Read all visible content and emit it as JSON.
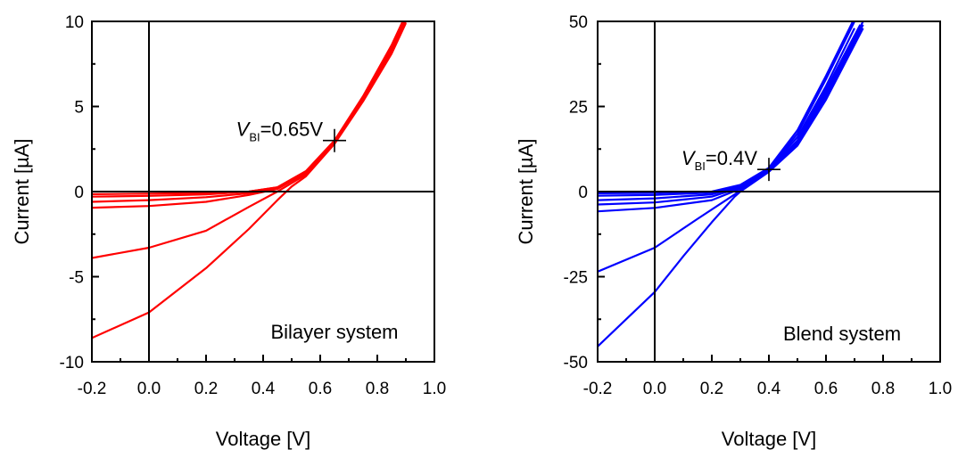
{
  "chart_data": [
    {
      "type": "line",
      "panel": "left",
      "xlabel": "Voltage [V]",
      "ylabel": "Current [µA]",
      "xlim": [
        -0.2,
        1.0
      ],
      "ylim": [
        -10,
        10
      ],
      "xticks": [
        "-0.2",
        "0.0",
        "0.2",
        "0.4",
        "0.6",
        "0.8",
        "1.0"
      ],
      "yticks": [
        "-10",
        "-5",
        "0",
        "5",
        "10"
      ],
      "color": "#ff0000",
      "grid": false,
      "annotation": {
        "prefix": "V",
        "subscript": "BI",
        "suffix": "=0.65V",
        "x": 0.65,
        "y": 3.0
      },
      "label": "Bilayer system",
      "series": [
        {
          "x": [
            -0.2,
            0.0,
            0.2,
            0.35,
            0.45,
            0.55,
            0.65,
            0.75,
            0.85,
            0.9
          ],
          "y": [
            -0.15,
            -0.12,
            -0.08,
            0.0,
            0.25,
            1.2,
            3.0,
            5.6,
            8.6,
            10.4
          ]
        },
        {
          "x": [
            -0.2,
            0.0,
            0.2,
            0.35,
            0.45,
            0.55,
            0.65,
            0.75,
            0.85,
            0.9
          ],
          "y": [
            -0.3,
            -0.25,
            -0.17,
            0.0,
            0.25,
            1.2,
            3.0,
            5.5,
            8.5,
            10.3
          ]
        },
        {
          "x": [
            -0.2,
            0.0,
            0.2,
            0.35,
            0.45,
            0.55,
            0.65,
            0.75,
            0.85,
            0.9
          ],
          "y": [
            -0.6,
            -0.5,
            -0.33,
            -0.1,
            0.2,
            1.15,
            2.95,
            5.45,
            8.4,
            10.2
          ]
        },
        {
          "x": [
            -0.2,
            0.0,
            0.2,
            0.35,
            0.45,
            0.55,
            0.65,
            0.75,
            0.85,
            0.9
          ],
          "y": [
            -0.95,
            -0.85,
            -0.6,
            -0.2,
            0.15,
            1.1,
            2.9,
            5.4,
            8.3,
            10.1
          ]
        },
        {
          "x": [
            -0.2,
            0.0,
            0.2,
            0.35,
            0.45,
            0.5,
            0.55,
            0.65,
            0.75,
            0.85,
            0.9
          ],
          "y": [
            -3.9,
            -3.3,
            -2.3,
            -0.9,
            0.0,
            0.5,
            1.0,
            2.85,
            5.35,
            8.2,
            10.0
          ]
        },
        {
          "x": [
            -0.2,
            0.0,
            0.2,
            0.35,
            0.45,
            0.5,
            0.55,
            0.65,
            0.75,
            0.85,
            0.9
          ],
          "y": [
            -8.6,
            -7.1,
            -4.5,
            -2.2,
            -0.5,
            0.3,
            0.9,
            2.8,
            5.3,
            8.1,
            9.9
          ]
        }
      ]
    },
    {
      "type": "line",
      "panel": "right",
      "xlabel": "Voltage [V]",
      "ylabel": "Current [µA]",
      "xlim": [
        -0.2,
        1.0
      ],
      "ylim": [
        -50,
        50
      ],
      "xticks": [
        "-0.2",
        "0.0",
        "0.2",
        "0.4",
        "0.6",
        "0.8",
        "1.0"
      ],
      "yticks": [
        "-50",
        "-25",
        "0",
        "25",
        "50"
      ],
      "color": "#0000ff",
      "grid": false,
      "annotation": {
        "prefix": "V",
        "subscript": "BI",
        "suffix": "=0.4V",
        "x": 0.4,
        "y": 6.5
      },
      "label": "Blend system",
      "series": [
        {
          "x": [
            -0.2,
            0.0,
            0.2,
            0.3,
            0.4,
            0.5,
            0.6,
            0.7
          ],
          "y": [
            -0.5,
            -0.4,
            0.0,
            2.0,
            7.0,
            18.0,
            34.0,
            51.0
          ]
        },
        {
          "x": [
            -0.2,
            0.0,
            0.2,
            0.3,
            0.4,
            0.5,
            0.6,
            0.7
          ],
          "y": [
            -1.2,
            -1.0,
            -0.3,
            1.8,
            6.8,
            17.0,
            33.0,
            50.0
          ]
        },
        {
          "x": [
            -0.2,
            0.0,
            0.2,
            0.3,
            0.4,
            0.5,
            0.6,
            0.7
          ],
          "y": [
            -2.5,
            -2.0,
            -0.8,
            1.5,
            6.6,
            16.0,
            31.0,
            48.0
          ]
        },
        {
          "x": [
            -0.2,
            0.0,
            0.2,
            0.3,
            0.4,
            0.5,
            0.6,
            0.72
          ],
          "y": [
            -3.8,
            -3.2,
            -1.5,
            1.2,
            6.4,
            15.0,
            30.0,
            49.0
          ]
        },
        {
          "x": [
            -0.2,
            0.0,
            0.2,
            0.3,
            0.4,
            0.5,
            0.6,
            0.73
          ],
          "y": [
            -5.8,
            -4.8,
            -2.5,
            0.8,
            6.2,
            14.5,
            29.0,
            50.0
          ]
        },
        {
          "x": [
            -0.2,
            0.0,
            0.15,
            0.25,
            0.3,
            0.4,
            0.5,
            0.6,
            0.73
          ],
          "y": [
            -23.5,
            -16.5,
            -8.0,
            -2.5,
            0.3,
            6.0,
            14.0,
            28.0,
            49.0
          ]
        },
        {
          "x": [
            -0.2,
            0.0,
            0.1,
            0.2,
            0.28,
            0.3,
            0.4,
            0.5,
            0.6,
            0.73
          ],
          "y": [
            -45.5,
            -29.5,
            -19.0,
            -9.0,
            -1.5,
            0.0,
            5.8,
            13.5,
            27.0,
            48.0
          ]
        }
      ]
    }
  ]
}
